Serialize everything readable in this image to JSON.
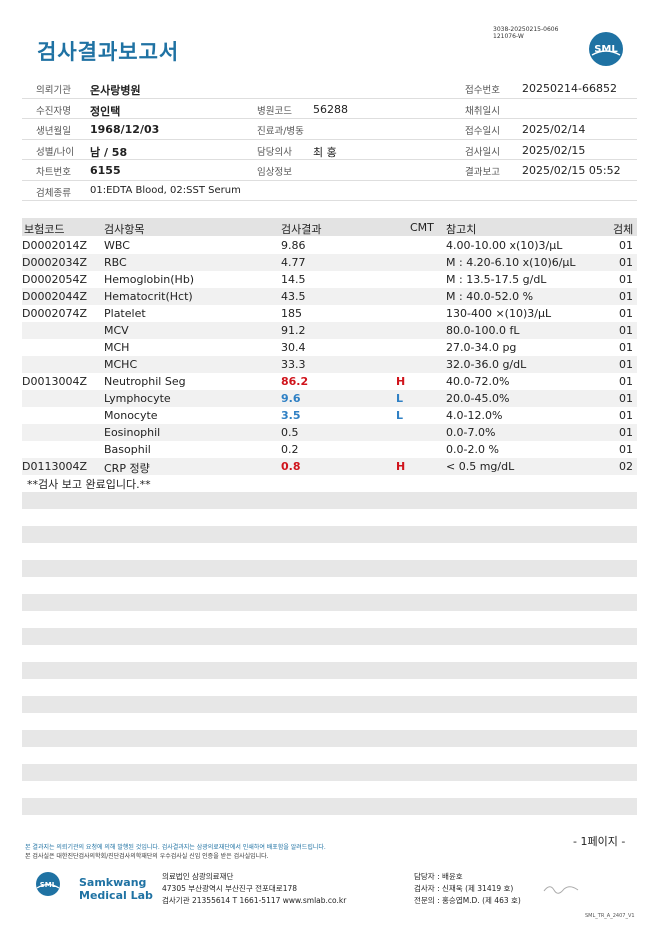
{
  "report": {
    "title": "검사결과보고서",
    "doc_id_1": "3038-20250215-0606",
    "doc_id_2": "121076-W",
    "logo_text": "SML"
  },
  "header": {
    "labels": {
      "institution": "의뢰기관",
      "recipient": "수진자명",
      "dob": "생년월일",
      "sex_age": "성별/나이",
      "chart_no": "차트번호",
      "specimen": "검체종류",
      "hospital_code": "병원코드",
      "dept": "진료과/병동",
      "doctor": "담당의사",
      "clinical": "임상정보",
      "receipt_no": "접수번호",
      "collect_date": "채취일시",
      "receipt_date": "접수일시",
      "test_date": "검사일시",
      "report_date": "결과보고"
    },
    "values": {
      "institution": "온사랑병원",
      "recipient": "정인택",
      "dob": "1968/12/03",
      "sex_age": "남 / 58",
      "chart_no": "6155",
      "specimen": "01:EDTA Blood, 02:SST Serum",
      "hospital_code": "56288",
      "dept": "",
      "doctor": "최 홍",
      "clinical": "",
      "receipt_no": "20250214-66852",
      "collect_date": "",
      "receipt_date": "2025/02/14",
      "test_date": "2025/02/15",
      "report_date": "2025/02/15 05:52"
    }
  },
  "table": {
    "headers": {
      "code": "보험코드",
      "item": "검사항목",
      "result": "검사결과",
      "cmt": "CMT",
      "ref": "참고치",
      "specimen": "검체"
    },
    "rows": [
      {
        "code": "D0002014Z",
        "item": "WBC",
        "result": "9.86",
        "flag": "",
        "ref": "4.00-10.00 x(10)3/μL",
        "specimen": "01"
      },
      {
        "code": "D0002034Z",
        "item": "RBC",
        "result": "4.77",
        "flag": "",
        "ref": "M : 4.20-6.10 x(10)6/μL",
        "specimen": "01"
      },
      {
        "code": "D0002054Z",
        "item": "Hemoglobin(Hb)",
        "result": "14.5",
        "flag": "",
        "ref": "M : 13.5-17.5 g/dL",
        "specimen": "01"
      },
      {
        "code": "D0002044Z",
        "item": "Hematocrit(Hct)",
        "result": "43.5",
        "flag": "",
        "ref": "M : 40.0-52.0 %",
        "specimen": "01"
      },
      {
        "code": "D0002074Z",
        "item": "Platelet",
        "result": "185",
        "flag": "",
        "ref": "130-400 ×(10)3/μL",
        "specimen": "01"
      },
      {
        "code": "",
        "item": "MCV",
        "result": "91.2",
        "flag": "",
        "ref": "80.0-100.0 fL",
        "specimen": "01"
      },
      {
        "code": "",
        "item": "MCH",
        "result": "30.4",
        "flag": "",
        "ref": "27.0-34.0 pg",
        "specimen": "01"
      },
      {
        "code": "",
        "item": "MCHC",
        "result": "33.3",
        "flag": "",
        "ref": "32.0-36.0 g/dL",
        "specimen": "01"
      },
      {
        "code": "D0013004Z",
        "item": "Neutrophil Seg",
        "result": "86.2",
        "flag": "H",
        "ref": "40.0-72.0%",
        "specimen": "01"
      },
      {
        "code": "",
        "item": "Lymphocyte",
        "result": "9.6",
        "flag": "L",
        "ref": "20.0-45.0%",
        "specimen": "01"
      },
      {
        "code": "",
        "item": "Monocyte",
        "result": "3.5",
        "flag": "L",
        "ref": "4.0-12.0%",
        "specimen": "01"
      },
      {
        "code": "",
        "item": "Eosinophil",
        "result": "0.5",
        "flag": "",
        "ref": "0.0-7.0%",
        "specimen": "01"
      },
      {
        "code": "",
        "item": "Basophil",
        "result": "0.2",
        "flag": "",
        "ref": "0.0-2.0 %",
        "specimen": "01"
      },
      {
        "code": "D0113004Z",
        "item": "CRP 정량",
        "result": "0.8",
        "flag": "H",
        "ref": "< 0.5 mg/dL",
        "specimen": "02"
      }
    ],
    "note": "**검사 보고 완료입니다.**"
  },
  "colors": {
    "accent": "#1f72a3",
    "high": "#d0141c",
    "low": "#2f80c4",
    "stripe": "#e7e7e7"
  },
  "footer": {
    "page": "- 1페이지 -",
    "disclaimer_1": "본 결과지는 의뢰기관의 요청에 의해 발행된 것입니다. 검사결과지는 삼광의료재단에서 인쇄하여 배포함을 알려드립니다.",
    "disclaimer_2": "본 검사실은 대한진단검사의학회/진단검사의학재단의 우수검사실 신임 인증을 받은 검사실입니다.",
    "lab_name_1": "Samkwang",
    "lab_name_2": "Medical Lab",
    "address_1": "의료법인 삼광의료재단",
    "address_2": "47305 부산광역시 부산진구 전포대로178",
    "address_3": "검사기관 21355614 T 1661-5117 www.smlab.co.kr",
    "staff_1": "담당자 : 배윤호",
    "staff_2": "검사자 : 신재욱 (제 31419 호)",
    "staff_3": "전문의 : 홍승엽M.D. (제 463 호)",
    "form_code": "SML_TR_A_2407_V1"
  }
}
